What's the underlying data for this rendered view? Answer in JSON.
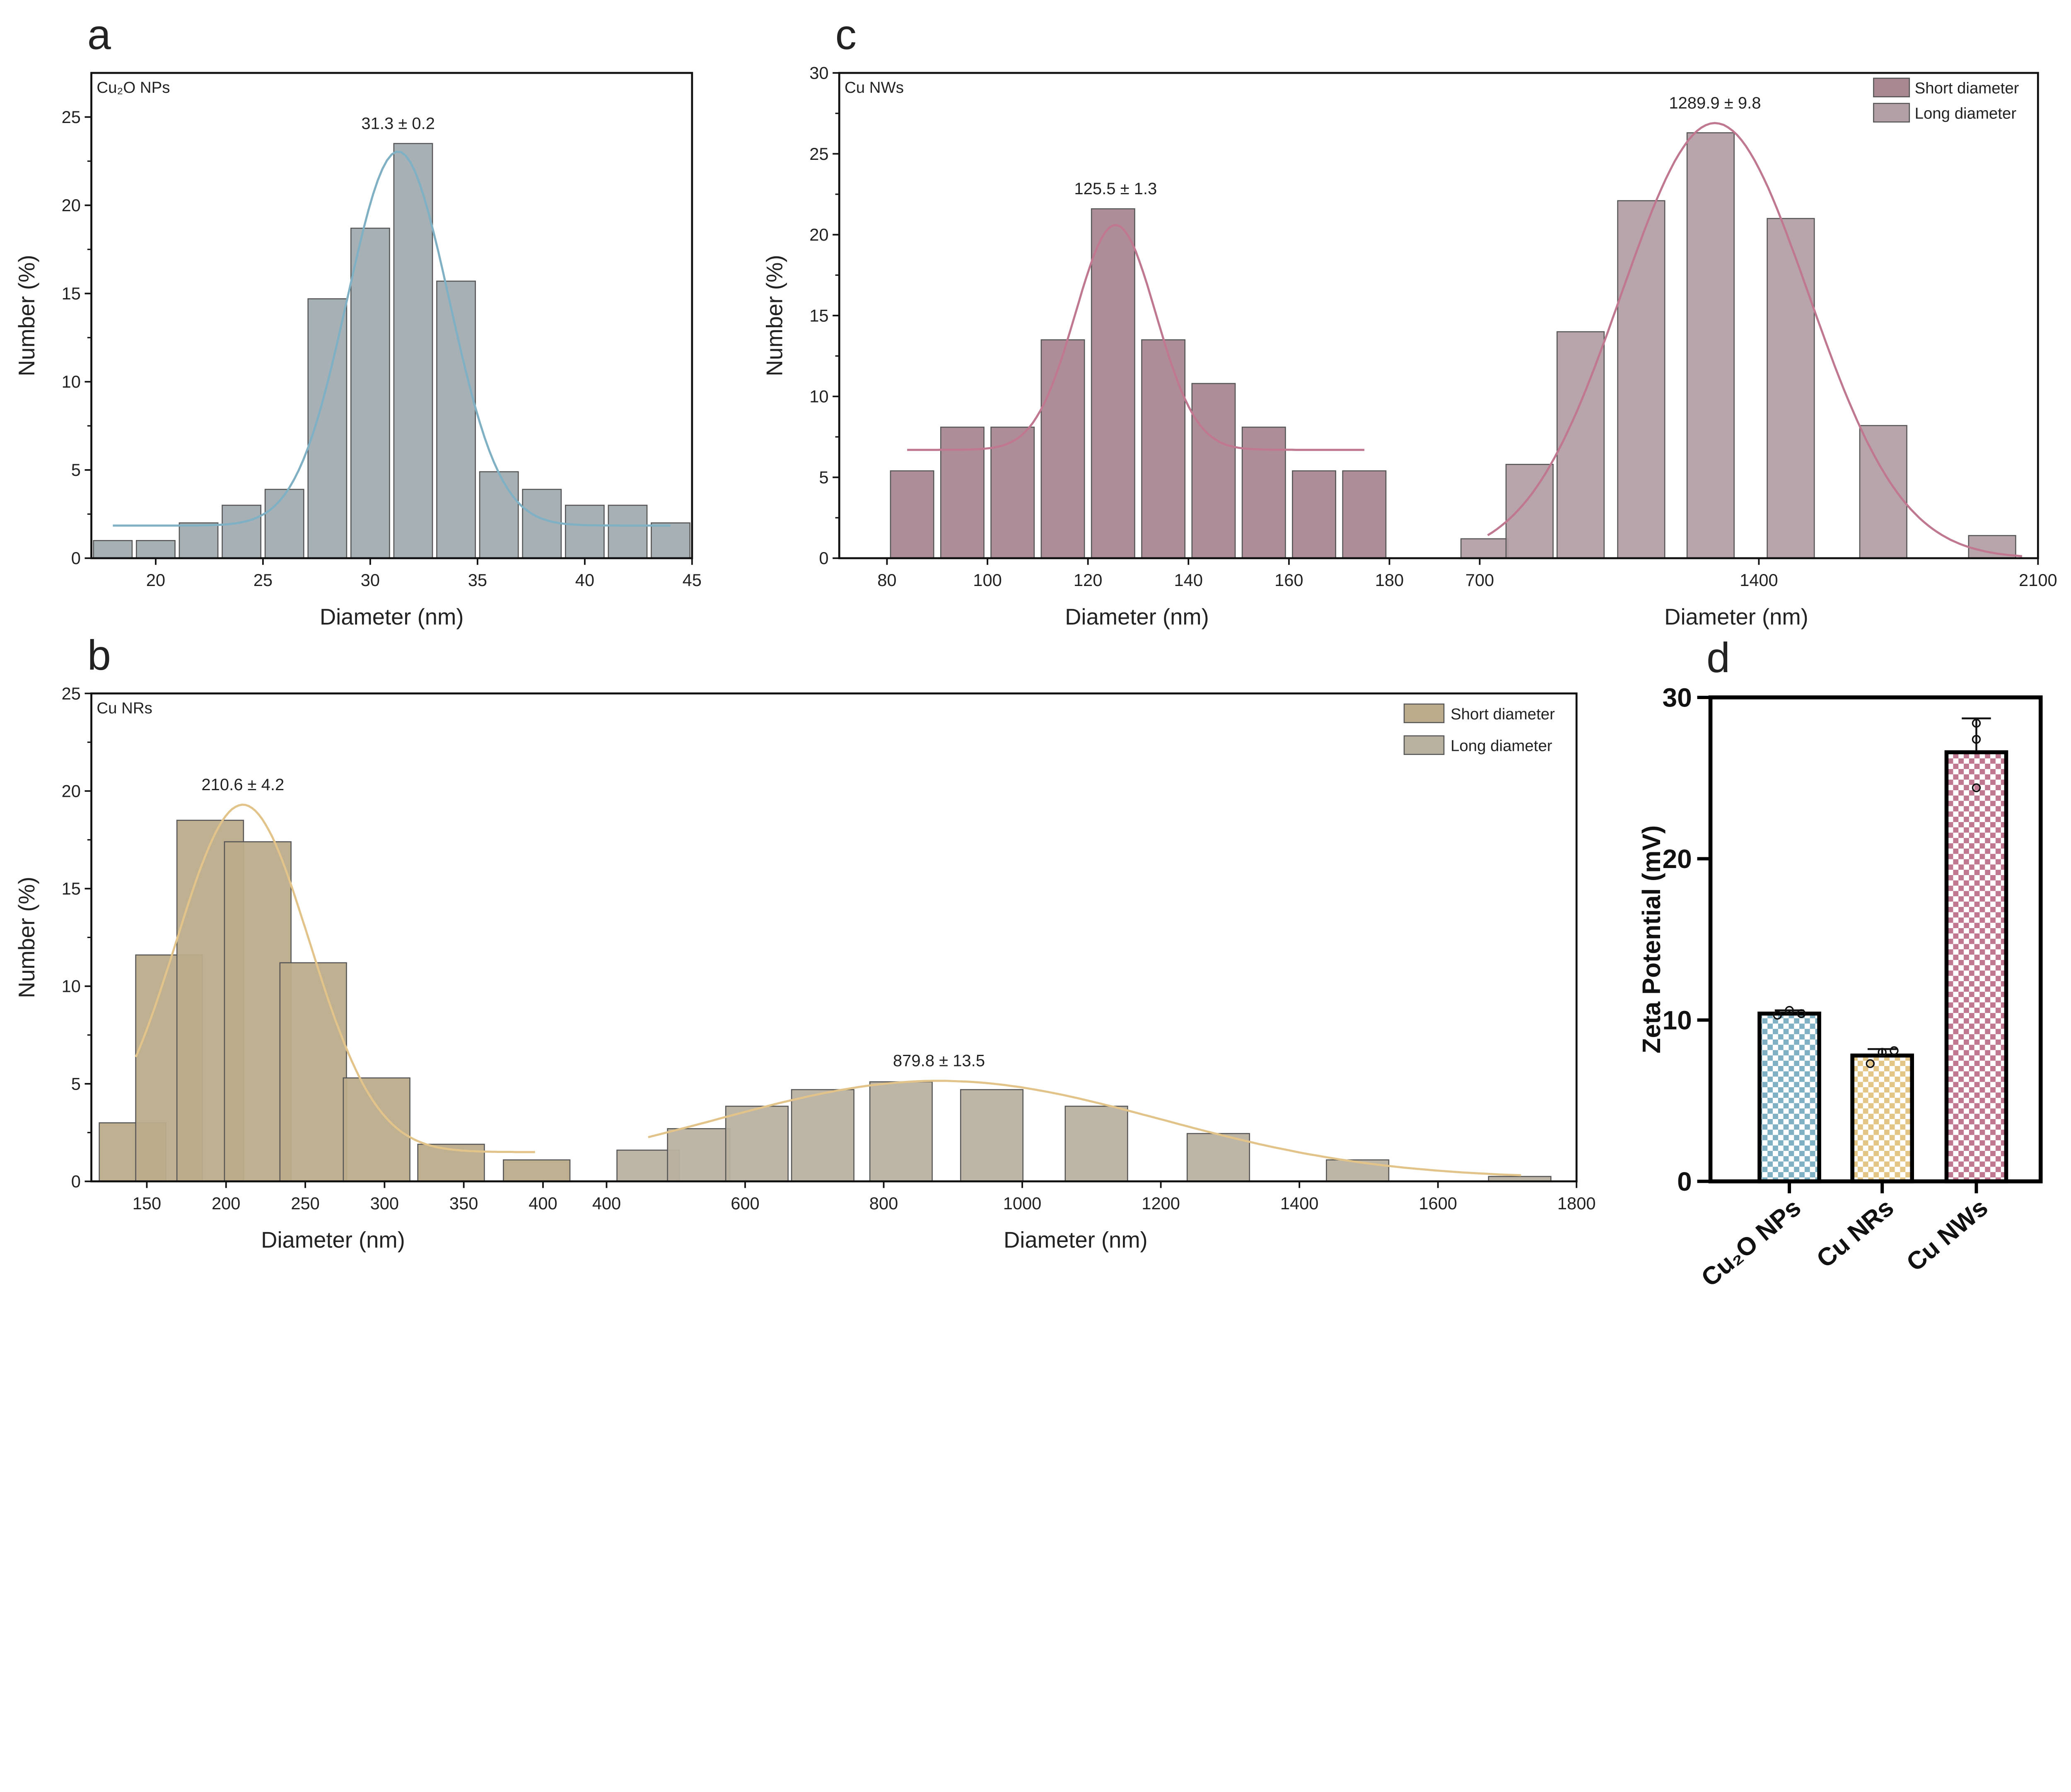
{
  "chart_data": [
    {
      "panel_label": "a",
      "type": "bar",
      "title": "Cu₂O NPs",
      "xlabel": "Diameter (nm)",
      "ylabel": "Number (%)",
      "x_segments": [
        {
          "domain": [
            17,
            45
          ],
          "ticks": [
            20,
            25,
            30,
            35,
            40,
            45
          ],
          "xlabel": "Diameter (nm)"
        }
      ],
      "ylim": [
        0,
        27.5
      ],
      "yticks": [
        0,
        5,
        10,
        15,
        20,
        25
      ],
      "grid": false,
      "series": [
        {
          "name": "Cu₂O NPs",
          "segment": 0,
          "color": "#a2acb0",
          "bin_width": 1.8,
          "x": [
            18,
            20,
            22,
            24,
            26,
            28,
            30,
            32,
            34,
            36,
            38,
            40,
            42,
            44
          ],
          "values": [
            1,
            1,
            2,
            3,
            3.9,
            14.7,
            18.7,
            23.5,
            15.7,
            4.9,
            3.9,
            3,
            3,
            2
          ]
        }
      ],
      "fits": [
        {
          "segment": 0,
          "center": 31.3,
          "amplitude": 21.2,
          "sigma": 2.37,
          "baseline": 1.85,
          "range": [
            18,
            44
          ],
          "color": "#7fb0c4",
          "label": "31.3 ± 0.2"
        }
      ]
    },
    {
      "panel_label": "c",
      "type": "bar",
      "title": "Cu NWs",
      "ylabel": "Number (%)",
      "x_segments": [
        {
          "domain": [
            70.5,
            189
          ],
          "ticks": [
            80,
            100,
            120,
            140,
            160,
            180
          ],
          "xlabel": "Diameter (nm)"
        },
        {
          "domain": [
            587,
            2100
          ],
          "ticks": [
            700,
            1400,
            2100
          ],
          "xlabel": "Diameter (nm)"
        }
      ],
      "ylim": [
        0,
        30
      ],
      "yticks": [
        0,
        5,
        10,
        15,
        20,
        25,
        30
      ],
      "grid": false,
      "legend_position": "top-right",
      "series": [
        {
          "name": "Short diameter",
          "segment": 0,
          "color": "#a98892",
          "bin_width": 8.6,
          "x": [
            85,
            95,
            105,
            115,
            125,
            135,
            145,
            155,
            165,
            175
          ],
          "values": [
            5.4,
            8.1,
            8.1,
            13.5,
            21.6,
            13.5,
            10.8,
            8.1,
            5.4,
            5.4
          ]
        },
        {
          "name": "Long diameter",
          "segment": 1,
          "color": "#b3a0a6",
          "bin_width": 118,
          "x": [
            712,
            825,
            953,
            1105,
            1279,
            1480,
            1712,
            1985
          ],
          "values": [
            1.2,
            5.8,
            14.0,
            22.1,
            26.3,
            21.0,
            8.2,
            1.4
          ]
        }
      ],
      "fits": [
        {
          "segment": 0,
          "center": 125.5,
          "amplitude": 13.9,
          "sigma": 8,
          "baseline": 6.7,
          "range": [
            84,
            175
          ],
          "color": "#c07890",
          "label": "125.5 ± 1.3"
        },
        {
          "segment": 1,
          "center": 1289.9,
          "amplitude": 26.9,
          "sigma": 235,
          "baseline": 0,
          "range": [
            720,
            2060
          ],
          "color": "#c07890",
          "label": "1289.9 ± 9.8"
        }
      ]
    },
    {
      "panel_label": "b",
      "type": "bar",
      "title": "Cu NRs",
      "ylabel": "Number (%)",
      "x_segments": [
        {
          "domain": [
            115,
            420
          ],
          "ticks": [
            150,
            200,
            250,
            300,
            350,
            400
          ],
          "xlabel": "Diameter (nm)"
        },
        {
          "domain": [
            354,
            1800
          ],
          "ticks": [
            400,
            600,
            800,
            1000,
            1200,
            1400,
            1600,
            1800
          ],
          "xlabel": "Diameter (nm)"
        }
      ],
      "ylim": [
        0,
        25
      ],
      "yticks": [
        0,
        5,
        10,
        15,
        20,
        25
      ],
      "grid": false,
      "legend_position": "top-right",
      "series": [
        {
          "name": "Short diameter",
          "segment": 0,
          "color": "#bcac8c",
          "bin_width": 42,
          "x": [
            141,
            164,
            190,
            220,
            255,
            295,
            342,
            396
          ],
          "values": [
            3.0,
            11.6,
            18.5,
            17.4,
            11.2,
            5.3,
            1.9,
            1.1
          ]
        },
        {
          "name": "Long diameter",
          "segment": 1,
          "color": "#b9b1a0",
          "bin_width": 90,
          "x": [
            460,
            533,
            617,
            712,
            825,
            956,
            1107,
            1283,
            1484,
            1718
          ],
          "values": [
            1.6,
            2.7,
            3.85,
            4.7,
            5.1,
            4.7,
            3.85,
            2.45,
            1.1,
            0.25
          ]
        }
      ],
      "fits": [
        {
          "segment": 0,
          "center": 210.6,
          "amplitude": 17.8,
          "sigma": 42,
          "baseline": 1.5,
          "range": [
            143,
            395
          ],
          "color": "#e2c48a",
          "label": "210.6 ± 4.2"
        },
        {
          "segment": 1,
          "center": 879.8,
          "amplitude": 5.0,
          "sigma": 320,
          "baseline": 0.15,
          "range": [
            460,
            1720
          ],
          "color": "#e2c48a",
          "label": "879.8 ± 13.5"
        }
      ]
    },
    {
      "panel_label": "d",
      "type": "bar",
      "ylabel": "Zeta Potential (mV)",
      "categories": [
        "Cu₂O NPs",
        "Cu NRs",
        "Cu NWs"
      ],
      "values": [
        10.4,
        7.8,
        26.6
      ],
      "error_sd": [
        0.2,
        0.4,
        2.1
      ],
      "points": [
        [
          10.3,
          10.6,
          10.4
        ],
        [
          7.3,
          8.0,
          8.1
        ],
        [
          28.4,
          27.4,
          24.4
        ]
      ],
      "colors": [
        "#7fb0c4",
        "#e3c686",
        "#c07890"
      ],
      "ylim": [
        0,
        30
      ],
      "yticks": [
        0,
        10,
        20,
        30
      ],
      "grid": false
    }
  ]
}
